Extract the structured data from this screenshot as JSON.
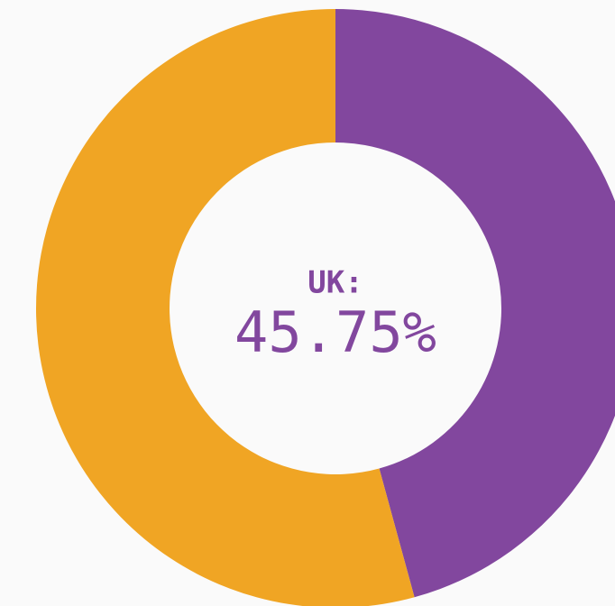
{
  "chart_data": {
    "type": "donut",
    "categories": [
      "UK:",
      null
    ],
    "values": [
      45.75,
      54.25
    ],
    "value_labels": [
      "45.75%",
      null
    ],
    "colors": [
      "#82479e",
      "#f0a524"
    ]
  }
}
